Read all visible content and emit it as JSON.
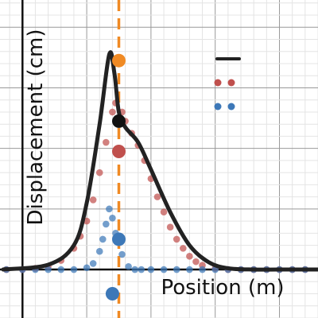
{
  "chart_data": {
    "type": "line",
    "title": "",
    "xlabel": "Position (m)",
    "ylabel": "Displacement (cm)",
    "xlim": [
      -0.35,
      4.6
    ],
    "ylim": [
      -0.8,
      4.45
    ],
    "grid": true,
    "tick_labels_shown": false,
    "legend": {
      "placement": "top-right",
      "entries": [
        {
          "marker": "line",
          "color": "#222222",
          "label": ""
        },
        {
          "marker": "dots",
          "color": "#c0504d",
          "label": ""
        },
        {
          "marker": "dots",
          "color": "#3d78b8",
          "label": ""
        }
      ]
    },
    "vertical_marker": {
      "x": 1.5,
      "color": "#f08a24",
      "style": "dashed"
    },
    "series": [
      {
        "kind": "line",
        "color": "#222222",
        "x": [
          -0.3,
          0.4,
          0.8,
          1.0,
          1.2,
          1.35,
          1.43,
          1.5,
          1.6,
          1.8,
          2.0,
          2.3,
          2.6,
          2.9,
          3.2,
          3.6,
          4.0,
          4.6
        ],
        "y": [
          0.0,
          0.08,
          0.4,
          1.1,
          2.4,
          3.55,
          3.25,
          2.6,
          2.35,
          2.1,
          1.65,
          0.95,
          0.4,
          0.12,
          0.02,
          0.0,
          0.0,
          0.0
        ]
      },
      {
        "kind": "dots",
        "color": "#c0504d",
        "x": [
          -0.25,
          0.0,
          0.2,
          0.4,
          0.6,
          0.8,
          0.9,
          1.0,
          1.1,
          1.2,
          1.3,
          1.4,
          1.45,
          1.55,
          1.6,
          1.7,
          1.8,
          1.9,
          2.0,
          2.1,
          2.2,
          2.3,
          2.4,
          2.5,
          2.6,
          2.7,
          2.8,
          3.0,
          3.2,
          3.4,
          3.6,
          3.8,
          4.0,
          4.2,
          4.4
        ],
        "y": [
          0.0,
          0.0,
          0.02,
          0.05,
          0.15,
          0.35,
          0.55,
          0.8,
          1.15,
          1.6,
          2.1,
          2.6,
          2.75,
          2.6,
          2.45,
          2.25,
          2.05,
          1.8,
          1.5,
          1.2,
          0.95,
          0.7,
          0.5,
          0.35,
          0.22,
          0.13,
          0.07,
          0.02,
          0.0,
          0.0,
          0.0,
          0.0,
          0.0,
          0.0,
          0.0
        ]
      },
      {
        "kind": "dots",
        "color": "#3d78b8",
        "x": [
          -0.25,
          0.0,
          0.2,
          0.4,
          0.6,
          0.8,
          1.0,
          1.1,
          1.2,
          1.25,
          1.3,
          1.35,
          1.4,
          1.45,
          1.55,
          1.65,
          1.75,
          1.85,
          2.0,
          2.2,
          2.4,
          2.6,
          2.8,
          3.0,
          3.2,
          3.4,
          3.6,
          3.8,
          4.0,
          4.2,
          4.4
        ],
        "y": [
          0.0,
          0.0,
          0.0,
          0.0,
          0.0,
          0.0,
          0.03,
          0.1,
          0.3,
          0.5,
          0.75,
          1.0,
          0.85,
          0.6,
          0.25,
          0.05,
          0.0,
          0.0,
          0.0,
          0.0,
          0.0,
          0.0,
          0.0,
          0.0,
          0.0,
          0.0,
          0.0,
          0.0,
          0.0,
          0.0,
          0.0
        ]
      }
    ],
    "highlight_points": [
      {
        "x": 1.5,
        "y": 3.45,
        "color": "#f08a24"
      },
      {
        "x": 1.5,
        "y": 2.45,
        "color": "#111111"
      },
      {
        "x": 1.5,
        "y": 1.95,
        "color": "#c0504d"
      },
      {
        "x": 1.5,
        "y": 0.5,
        "color": "#3d78b8"
      },
      {
        "x": 1.4,
        "y": -0.4,
        "color": "#3d78b8"
      }
    ]
  }
}
